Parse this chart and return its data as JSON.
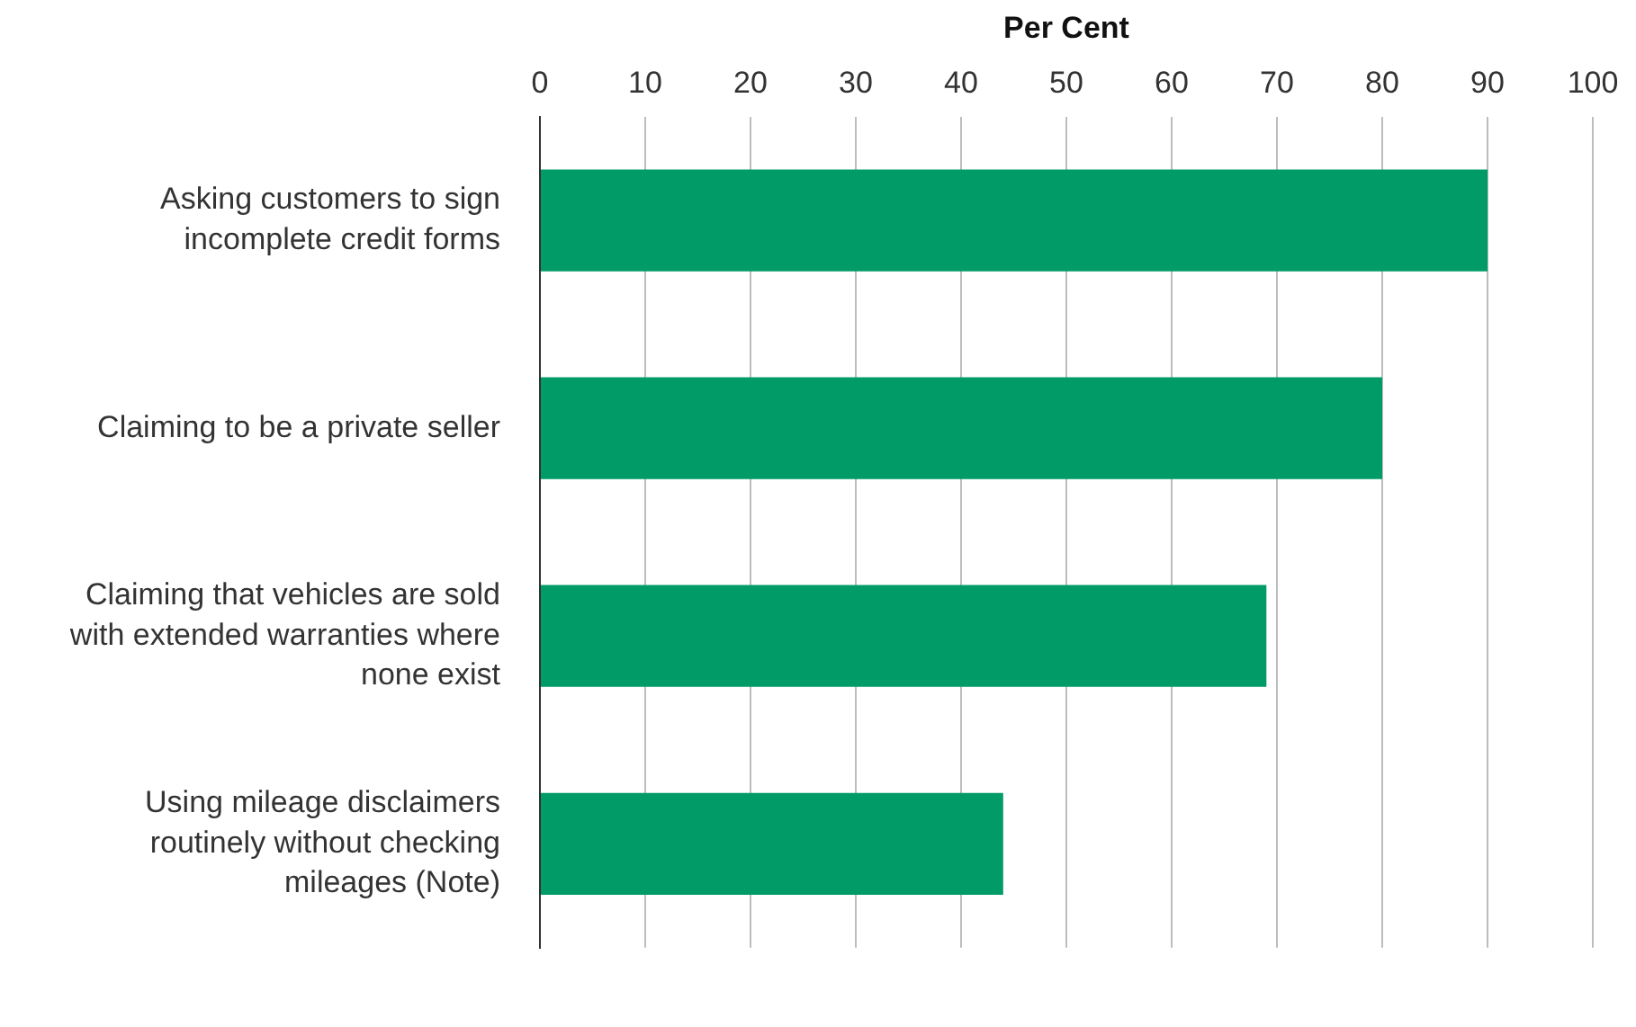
{
  "chart_data": {
    "type": "bar",
    "orientation": "horizontal",
    "xlabel": "Per Cent",
    "categories": [
      "Asking customers to sign incomplete credit forms",
      "Claiming to be a private seller",
      "Claiming that vehicles are sold with extended warranties where none exist",
      "Using mileage disclaimers routinely without checking mileages (Note)"
    ],
    "values": [
      90,
      80,
      69,
      44
    ],
    "color": "#009b67",
    "xlim": [
      0,
      100
    ],
    "xticks": [
      0,
      10,
      20,
      30,
      40,
      50,
      60,
      70,
      80,
      90,
      100
    ],
    "grid": "x",
    "legend": false
  }
}
